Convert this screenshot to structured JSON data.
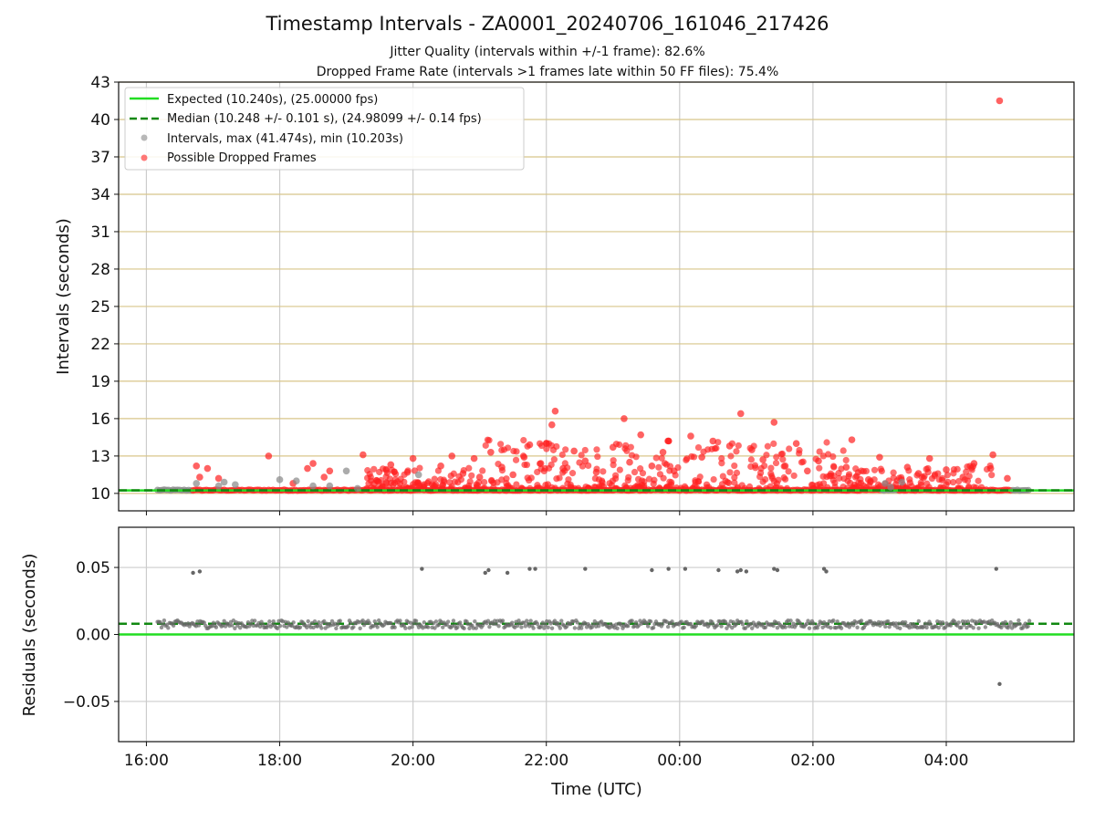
{
  "chart_data": [
    {
      "type": "scatter",
      "title": "Timestamp Intervals - ZA0001_20240706_161046_217426",
      "subtitle_lines": [
        "Jitter Quality (intervals within +/-1 frame): 82.6%",
        "Dropped Frame Rate (intervals >1 frames late within 50 FF files): 75.4%"
      ],
      "xlabel": "",
      "ylabel": "Intervals (seconds)",
      "x_time_range": [
        "15:35",
        "05:55"
      ],
      "ylim": [
        8.6,
        43
      ],
      "yticks": [
        10,
        13,
        16,
        19,
        22,
        25,
        28,
        31,
        34,
        37,
        40,
        43
      ],
      "xticks": [
        "16:00",
        "18:00",
        "20:00",
        "22:00",
        "00:00",
        "02:00",
        "04:00"
      ],
      "grid": "vertical gray lines at x ticks; horizontal tan lines at y ticks",
      "legend_position": "upper-left",
      "legend": [
        {
          "label": "Expected (10.240s), (25.00000 fps)",
          "style": "line",
          "color": "#22dd22"
        },
        {
          "label": "Median (10.248 +/- 0.101 s), (24.98099 +/- 0.14 fps)",
          "style": "dashed",
          "color": "#118811"
        },
        {
          "label": "Intervals, max (41.474s), min (10.203s)",
          "style": "marker",
          "color": "#888888"
        },
        {
          "label": "Possible Dropped Frames",
          "style": "marker",
          "color": "#ff2020"
        }
      ],
      "expected_interval": 10.24,
      "median_interval": 10.248,
      "max_interval": 41.474,
      "min_interval": 10.203,
      "data_time_range": [
        "16:10",
        "05:15"
      ],
      "series": [
        {
          "name": "Possible Dropped Frames",
          "color": "#ff2020",
          "points": [
            {
              "t": "16:45",
              "y": 12.2
            },
            {
              "t": "16:48",
              "y": 11.3
            },
            {
              "t": "16:55",
              "y": 12.0
            },
            {
              "t": "17:05",
              "y": 11.2
            },
            {
              "t": "17:50",
              "y": 13.0
            },
            {
              "t": "18:12",
              "y": 10.8
            },
            {
              "t": "18:25",
              "y": 12.0
            },
            {
              "t": "18:30",
              "y": 12.4
            },
            {
              "t": "18:40",
              "y": 11.3
            },
            {
              "t": "18:45",
              "y": 11.8
            },
            {
              "t": "19:15",
              "y": 13.1
            },
            {
              "t": "19:25",
              "y": 10.8
            },
            {
              "t": "19:40",
              "y": 12.3
            },
            {
              "t": "19:55",
              "y": 11.7
            },
            {
              "t": "20:00",
              "y": 12.8
            },
            {
              "t": "20:10",
              "y": 10.7
            },
            {
              "t": "20:25",
              "y": 12.2
            },
            {
              "t": "20:35",
              "y": 13.0
            },
            {
              "t": "20:45",
              "y": 11.6
            },
            {
              "t": "20:55",
              "y": 12.8
            },
            {
              "t": "21:00",
              "y": 11.3
            },
            {
              "t": "21:10",
              "y": 13.3
            },
            {
              "t": "21:20",
              "y": 12.1
            },
            {
              "t": "21:30",
              "y": 11.5
            },
            {
              "t": "21:40",
              "y": 12.9
            },
            {
              "t": "21:45",
              "y": 13.9
            },
            {
              "t": "21:55",
              "y": 12.4
            },
            {
              "t": "22:00",
              "y": 14.0
            },
            {
              "t": "22:05",
              "y": 15.5
            },
            {
              "t": "22:08",
              "y": 16.6
            },
            {
              "t": "22:15",
              "y": 12.0
            },
            {
              "t": "22:25",
              "y": 13.4
            },
            {
              "t": "22:35",
              "y": 12.6
            },
            {
              "t": "22:45",
              "y": 11.7
            },
            {
              "t": "23:00",
              "y": 13.7
            },
            {
              "t": "23:10",
              "y": 16.0
            },
            {
              "t": "23:15",
              "y": 12.5
            },
            {
              "t": "23:25",
              "y": 14.7
            },
            {
              "t": "23:35",
              "y": 12.2
            },
            {
              "t": "23:45",
              "y": 13.3
            },
            {
              "t": "23:50",
              "y": 14.2
            },
            {
              "t": "23:55",
              "y": 11.8
            },
            {
              "t": "00:10",
              "y": 14.6
            },
            {
              "t": "00:20",
              "y": 12.9
            },
            {
              "t": "00:30",
              "y": 14.2
            },
            {
              "t": "00:45",
              "y": 13.8
            },
            {
              "t": "00:55",
              "y": 16.4
            },
            {
              "t": "01:05",
              "y": 13.5
            },
            {
              "t": "01:15",
              "y": 12.7
            },
            {
              "t": "01:25",
              "y": 15.7
            },
            {
              "t": "01:35",
              "y": 12.2
            },
            {
              "t": "01:45",
              "y": 14.0
            },
            {
              "t": "01:55",
              "y": 11.8
            },
            {
              "t": "02:05",
              "y": 12.6
            },
            {
              "t": "02:15",
              "y": 11.4
            },
            {
              "t": "02:30",
              "y": 12.1
            },
            {
              "t": "02:35",
              "y": 14.3
            },
            {
              "t": "02:50",
              "y": 11.1
            },
            {
              "t": "03:00",
              "y": 12.9
            },
            {
              "t": "03:25",
              "y": 12.1
            },
            {
              "t": "03:35",
              "y": 11.6
            },
            {
              "t": "03:45",
              "y": 12.8
            },
            {
              "t": "04:00",
              "y": 11.9
            },
            {
              "t": "04:15",
              "y": 11.3
            },
            {
              "t": "04:25",
              "y": 12.4
            },
            {
              "t": "04:40",
              "y": 12.0
            },
            {
              "t": "04:42",
              "y": 13.1
            },
            {
              "t": "04:48",
              "y": 41.5
            },
            {
              "t": "04:55",
              "y": 11.2
            }
          ]
        },
        {
          "name": "Intervals, max (41.474s), min (10.203s)",
          "color": "#888888",
          "points": [
            {
              "t": "16:45",
              "y": 10.8
            },
            {
              "t": "17:05",
              "y": 10.6
            },
            {
              "t": "17:10",
              "y": 10.9
            },
            {
              "t": "17:20",
              "y": 10.7
            },
            {
              "t": "18:00",
              "y": 11.1
            },
            {
              "t": "18:15",
              "y": 11.0
            },
            {
              "t": "18:30",
              "y": 10.6
            },
            {
              "t": "18:45",
              "y": 10.6
            },
            {
              "t": "19:00",
              "y": 11.8
            },
            {
              "t": "19:10",
              "y": 10.4
            },
            {
              "t": "20:05",
              "y": 11.5
            },
            {
              "t": "03:05",
              "y": 10.8
            },
            {
              "t": "03:10",
              "y": 10.5
            },
            {
              "t": "03:20",
              "y": 10.9
            }
          ]
        }
      ]
    },
    {
      "type": "scatter",
      "title": "",
      "xlabel": "Time (UTC)",
      "ylabel": "Residuals (seconds)",
      "ylim": [
        -0.08,
        0.08
      ],
      "yticks": [
        0.05,
        0.0,
        -0.05
      ],
      "ytick_labels": [
        "0.05",
        "0.00",
        "−0.05"
      ],
      "xticks": [
        "16:00",
        "18:00",
        "20:00",
        "22:00",
        "00:00",
        "02:00",
        "04:00"
      ],
      "grid": "gray lines at x and y ticks",
      "expected_residual": 0.0,
      "median_residual": 0.008,
      "series": [
        {
          "name": "Residuals",
          "color": "#666666",
          "baseline": 0.0075,
          "outliers": [
            {
              "t": "16:42",
              "y": 0.046
            },
            {
              "t": "16:48",
              "y": 0.047
            },
            {
              "t": "20:08",
              "y": 0.049
            },
            {
              "t": "21:05",
              "y": 0.046
            },
            {
              "t": "21:08",
              "y": 0.048
            },
            {
              "t": "21:25",
              "y": 0.046
            },
            {
              "t": "21:45",
              "y": 0.049
            },
            {
              "t": "21:50",
              "y": 0.049
            },
            {
              "t": "22:35",
              "y": 0.049
            },
            {
              "t": "23:35",
              "y": 0.048
            },
            {
              "t": "23:50",
              "y": 0.049
            },
            {
              "t": "00:05",
              "y": 0.049
            },
            {
              "t": "00:35",
              "y": 0.048
            },
            {
              "t": "00:52",
              "y": 0.047
            },
            {
              "t": "00:55",
              "y": 0.048
            },
            {
              "t": "01:00",
              "y": 0.047
            },
            {
              "t": "01:25",
              "y": 0.049
            },
            {
              "t": "01:28",
              "y": 0.048
            },
            {
              "t": "02:10",
              "y": 0.049
            },
            {
              "t": "02:12",
              "y": 0.047
            },
            {
              "t": "04:45",
              "y": 0.049
            },
            {
              "t": "04:48",
              "y": -0.037
            }
          ]
        }
      ]
    }
  ]
}
